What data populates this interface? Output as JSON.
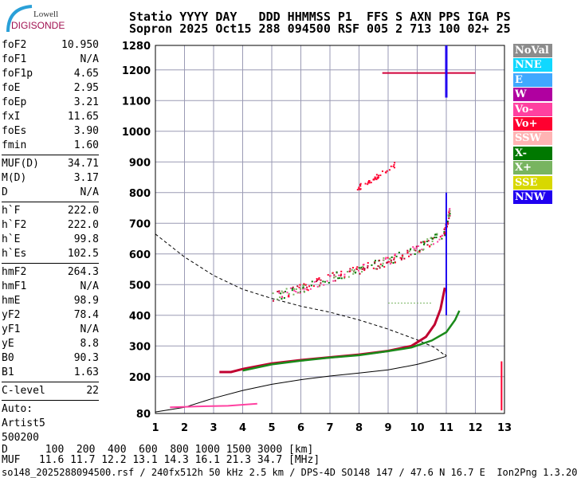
{
  "header": {
    "line1": "Statio YYYY DAY   DDD HHMMSS P1  FFS S AXN PPS IGA PS",
    "line2": "Sopron 2025 Oct15 288 094500 RSF 005 2 713 100 02+ 25"
  },
  "logo": {
    "top": "Lowell",
    "bottom": "DIGISONDE"
  },
  "params": [
    [
      {
        "k": "foF2",
        "v": "10.950"
      },
      {
        "k": "foF1",
        "v": "N/A"
      },
      {
        "k": "foF1p",
        "v": "4.65"
      },
      {
        "k": "foE",
        "v": "2.95"
      },
      {
        "k": "foEp",
        "v": "3.21"
      },
      {
        "k": "fxI",
        "v": "11.65"
      },
      {
        "k": "foEs",
        "v": "3.90"
      },
      {
        "k": "fmin",
        "v": "1.60"
      }
    ],
    [
      {
        "k": "MUF(D)",
        "v": "34.71"
      },
      {
        "k": "M(D)",
        "v": "3.17"
      },
      {
        "k": "D",
        "v": "N/A"
      }
    ],
    [
      {
        "k": "h`F",
        "v": "222.0"
      },
      {
        "k": "h`F2",
        "v": "222.0"
      },
      {
        "k": "h`E",
        "v": "99.8"
      },
      {
        "k": "h`Es",
        "v": "102.5"
      }
    ],
    [
      {
        "k": "hmF2",
        "v": "264.3"
      },
      {
        "k": "hmF1",
        "v": "N/A"
      },
      {
        "k": "hmE",
        "v": "98.9"
      },
      {
        "k": "yF2",
        "v": "78.4"
      },
      {
        "k": "yF1",
        "v": "N/A"
      },
      {
        "k": "yE",
        "v": "8.8"
      },
      {
        "k": "B0",
        "v": "90.3"
      },
      {
        "k": "B1",
        "v": "1.63"
      }
    ],
    [
      {
        "k": "C-level",
        "v": "22"
      }
    ]
  ],
  "auto": [
    "Auto:",
    "Artist5",
    "500200"
  ],
  "legend": [
    {
      "name": "NoVal",
      "color": "#8c8c8c"
    },
    {
      "name": "NNE",
      "color": "#10d8ff"
    },
    {
      "name": "E",
      "color": "#40a8ff"
    },
    {
      "name": "W",
      "color": "#b000a0"
    },
    {
      "name": "Vo-",
      "color": "#ff40a0"
    },
    {
      "name": "Vo+",
      "color": "#ff0030"
    },
    {
      "name": "SSW",
      "color": "#ffb4b4"
    },
    {
      "name": "X-",
      "color": "#007800"
    },
    {
      "name": "X+",
      "color": "#78b460"
    },
    {
      "name": "SSE",
      "color": "#d8d800"
    },
    {
      "name": "NNW",
      "color": "#2000f0"
    }
  ],
  "footer": {
    "d_row": "D      100  200  400  600  800 1000 1500 3000 [km]",
    "muf_row": "MUF   11.6 11.7 12.2 13.1 14.3 16.1 21.3 34.7 [MHz]",
    "file": "so148_2025288094500.rsf / 240fx512h 50 kHz 2.5 km / DPS-4D SO148 147 / 47.6 N 16.7 E  Ion2Png 1.3.20"
  },
  "chart_data": {
    "type": "scatter",
    "xlim": [
      1,
      13
    ],
    "ylim": [
      80,
      1280
    ],
    "xticks": [
      "1",
      "2",
      "3",
      "4",
      "5",
      "6",
      "7",
      "8",
      "9",
      "10",
      "11",
      "12",
      "13"
    ],
    "yticks": [
      "80",
      "200",
      "300",
      "400",
      "500",
      "600",
      "700",
      "800",
      "900",
      "1000",
      "1100",
      "1200",
      "1280"
    ],
    "o_trace": [
      [
        1.4,
        103
      ],
      [
        2,
        107
      ],
      [
        2.8,
        113
      ],
      [
        3.2,
        215
      ],
      [
        3.6,
        215
      ],
      [
        4,
        225
      ],
      [
        5,
        243
      ],
      [
        6,
        254
      ],
      [
        7,
        263
      ],
      [
        8,
        272
      ],
      [
        9,
        284
      ],
      [
        9.8,
        300
      ],
      [
        10.3,
        330
      ],
      [
        10.6,
        370
      ],
      [
        10.8,
        420
      ],
      [
        10.95,
        490
      ]
    ],
    "x_trace": [
      [
        4,
        220
      ],
      [
        5,
        240
      ],
      [
        6,
        252
      ],
      [
        7,
        262
      ],
      [
        8,
        270
      ],
      [
        9,
        283
      ],
      [
        9.8,
        295
      ],
      [
        10.5,
        318
      ],
      [
        11,
        345
      ],
      [
        11.3,
        385
      ],
      [
        11.45,
        415
      ]
    ],
    "multihop": [
      [
        5,
        462
      ],
      [
        6,
        490
      ],
      [
        7,
        525
      ],
      [
        8,
        552
      ],
      [
        9,
        580
      ],
      [
        10,
        620
      ],
      [
        10.9,
        668
      ],
      [
        11.1,
        740
      ]
    ],
    "es_trace": [
      [
        1.5,
        100
      ],
      [
        2.5,
        103
      ],
      [
        3.5,
        105
      ],
      [
        4.5,
        112
      ]
    ],
    "profile_dashed": [
      [
        1,
        665
      ],
      [
        2,
        590
      ],
      [
        3,
        530
      ],
      [
        4,
        485
      ],
      [
        5,
        455
      ],
      [
        6,
        430
      ],
      [
        7,
        410
      ],
      [
        8,
        385
      ],
      [
        9,
        355
      ],
      [
        10,
        320
      ],
      [
        10.6,
        295
      ],
      [
        10.95,
        270
      ]
    ],
    "profile_solid": [
      [
        1,
        85
      ],
      [
        2,
        100
      ],
      [
        3,
        130
      ],
      [
        4,
        155
      ],
      [
        5,
        175
      ],
      [
        6,
        190
      ],
      [
        7,
        202
      ],
      [
        8,
        212
      ],
      [
        9,
        222
      ],
      [
        10,
        240
      ],
      [
        10.6,
        255
      ],
      [
        10.95,
        265
      ]
    ]
  }
}
